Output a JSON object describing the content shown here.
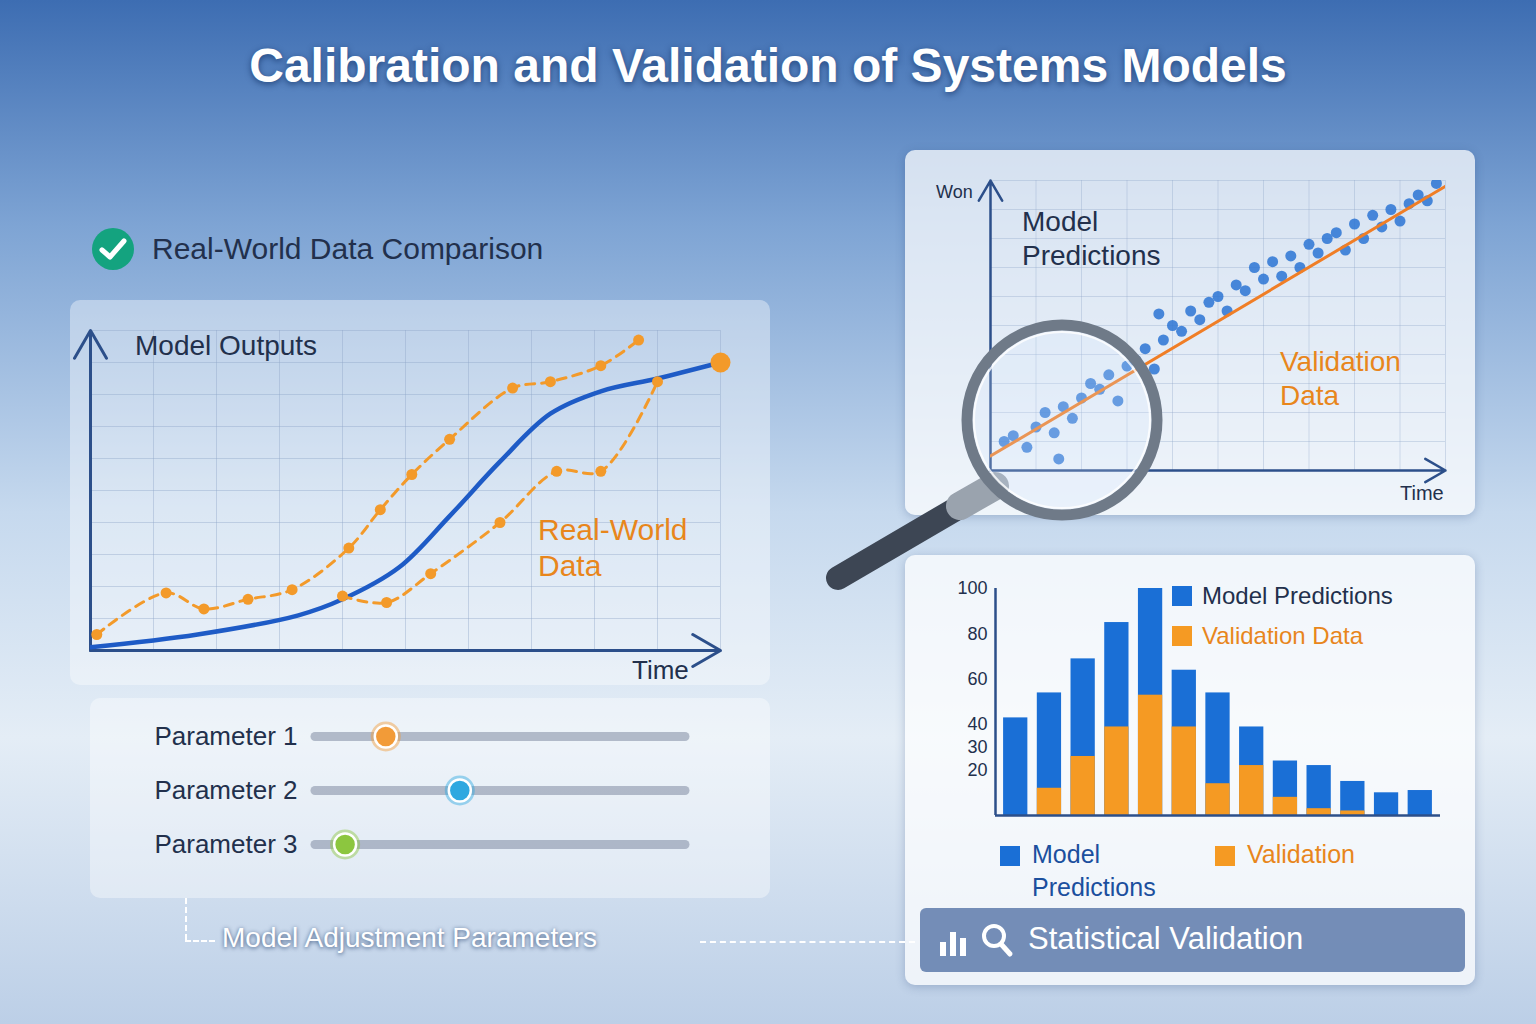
{
  "title": "Calibration and Validation of Systems Models",
  "chart_data": [
    {
      "type": "line",
      "title": "Real-World Data Comparison",
      "ylabel": "Model Outputs",
      "xlabel": "Time",
      "xlim": [
        0,
        100
      ],
      "ylim": [
        0,
        100
      ],
      "tick_labels": false,
      "grid": true,
      "series": [
        {
          "color": "#1e5bc6",
          "line_style": "solid",
          "x": [
            0,
            17,
            33,
            40,
            49,
            57,
            65,
            73,
            81,
            90,
            100
          ],
          "values": [
            1,
            5,
            11,
            16,
            26,
            42,
            59,
            74,
            81,
            85,
            90
          ]
        },
        {
          "name": "Real-World Data",
          "color": "#f39a2a",
          "line_style": "dashed",
          "marker": "circle",
          "x": [
            1,
            12,
            18,
            25,
            32,
            41,
            46,
            51,
            57,
            67,
            73,
            81,
            87,
            null,
            40,
            47,
            54,
            65,
            74,
            81,
            90
          ],
          "values": [
            5,
            18,
            13,
            16,
            19,
            32,
            44,
            55,
            66,
            82,
            84,
            89,
            97,
            null,
            17,
            15,
            24,
            40,
            56,
            56,
            84
          ]
        }
      ]
    },
    {
      "type": "scatter",
      "ylabel": "Won",
      "xlabel": "Time",
      "xlim": [
        0,
        100
      ],
      "ylim": [
        0,
        100
      ],
      "tick_labels": false,
      "grid": true,
      "series": [
        {
          "name": "Model Predictions",
          "type": "scatter",
          "marker": "circle",
          "color": "#2b74d4",
          "x": [
            3,
            5,
            8,
            10,
            12,
            14,
            15,
            16,
            18,
            20,
            22,
            24,
            26,
            28,
            30,
            32,
            34,
            36,
            37,
            38,
            40,
            42,
            44,
            46,
            48,
            50,
            52,
            54,
            56,
            58,
            60,
            62,
            64,
            66,
            68,
            70,
            72,
            74,
            76,
            78,
            80,
            82,
            84,
            86,
            88,
            90,
            92,
            94,
            96,
            98
          ],
          "values": [
            10,
            12,
            8,
            15,
            20,
            13,
            4,
            22,
            18,
            25,
            30,
            28,
            33,
            24,
            36,
            38,
            42,
            35,
            54,
            45,
            50,
            48,
            55,
            52,
            58,
            60,
            55,
            64,
            62,
            70,
            66,
            72,
            67,
            74,
            70,
            78,
            75,
            80,
            82,
            76,
            85,
            80,
            88,
            84,
            90,
            86,
            92,
            95,
            93,
            99
          ]
        },
        {
          "name": "Validation Data",
          "type": "line",
          "line_style": "solid",
          "color": "#f07e26",
          "x": [
            0,
            100
          ],
          "values": [
            5,
            98
          ]
        }
      ]
    },
    {
      "type": "bar",
      "stacked": false,
      "tick_labels": "y",
      "grid": false,
      "legend": "top-right",
      "categories": [
        null,
        null,
        null,
        null,
        null,
        null,
        null,
        null,
        null,
        null,
        null,
        null,
        null
      ],
      "ylim": [
        0,
        100
      ],
      "yticks": [
        20,
        30,
        40,
        60,
        80,
        100
      ],
      "series": [
        {
          "name": "Model Predictions",
          "color": "#1a6fd6",
          "values": [
            43,
            54,
            69,
            85,
            100,
            64,
            54,
            39,
            24,
            22,
            15,
            10,
            11
          ]
        },
        {
          "name": "Validation Data",
          "color": "#f59a23",
          "values": [
            null,
            12,
            26,
            39,
            53,
            39,
            14,
            22,
            8,
            3,
            2,
            null,
            null
          ]
        }
      ],
      "annotations": [
        {
          "text": "Model Predictions",
          "color": "#1a6fd6"
        },
        {
          "text": "Validation",
          "color": "#f59a23"
        }
      ]
    }
  ],
  "parameters": {
    "caption": "Model Adjustment Parameters",
    "range": [
      0,
      100
    ],
    "sliders": [
      {
        "label": "Parameter 1",
        "value": 19,
        "color": "#f29b38"
      },
      {
        "label": "Parameter 2",
        "value": 39,
        "color": "#2fa8e0"
      },
      {
        "label": "Parameter 3",
        "value": 8,
        "color": "#8cc63f"
      }
    ]
  },
  "footer_button": "Statistical Validation"
}
